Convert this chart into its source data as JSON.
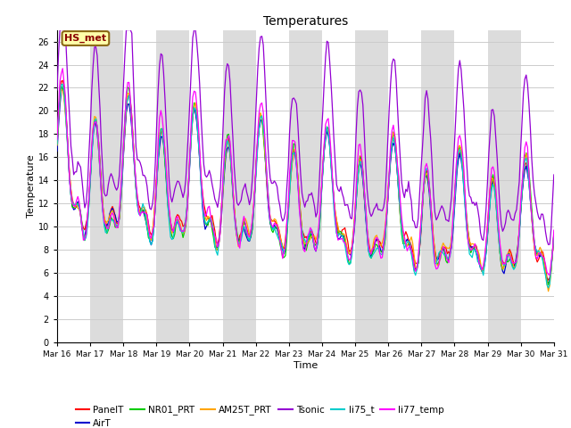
{
  "title": "Temperatures",
  "xlabel": "Time",
  "ylabel": "Temperature",
  "ylim": [
    0,
    27
  ],
  "yticks": [
    0,
    2,
    4,
    6,
    8,
    10,
    12,
    14,
    16,
    18,
    20,
    22,
    24,
    26
  ],
  "annotation": "HS_met",
  "annotation_color": "#8B0000",
  "annotation_bg": "#FFFFAA",
  "annotation_border": "#8B6914",
  "series_colors": {
    "PanelT": "#FF0000",
    "AirT": "#0000CD",
    "NR01_PRT": "#00CC00",
    "AM25T_PRT": "#FFA500",
    "Tsonic": "#9400D3",
    "li75_t": "#00CCCC",
    "li77_temp": "#FF00FF"
  },
  "legend_order": [
    "PanelT",
    "AirT",
    "NR01_PRT",
    "AM25T_PRT",
    "Tsonic",
    "li75_t",
    "li77_temp"
  ],
  "band_color": "#DCDCDC",
  "plot_bg": "#FFFFFF",
  "grid_color": "#CCCCCC",
  "figsize": [
    6.4,
    4.8
  ],
  "dpi": 100
}
